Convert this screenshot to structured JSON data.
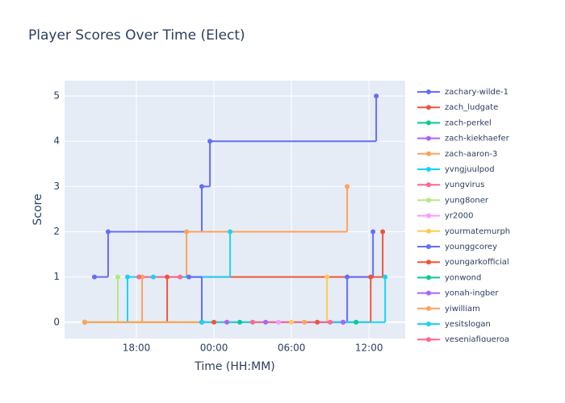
{
  "chart_data": {
    "type": "line",
    "line_shape": "hv",
    "title": "Player Scores Over Time (Elect)",
    "x_label": "Time (HH:MM)",
    "y_label": "Score",
    "xlim": [
      12.44,
      38.8
    ],
    "ylim": [
      -0.36,
      5.34
    ],
    "xticks": [
      {
        "value": 18,
        "label": "18:00"
      },
      {
        "value": 24,
        "label": "00:00"
      },
      {
        "value": 30,
        "label": "06:00"
      },
      {
        "value": 36,
        "label": "12:00"
      }
    ],
    "yticks": [
      0,
      1,
      2,
      3,
      4,
      5
    ],
    "grid": true,
    "series": [
      {
        "name": "zachary-wilde-1",
        "color": "#636efa",
        "x": [
          14.75,
          15.81,
          23.06,
          23.69,
          36.56
        ],
        "values": [
          1,
          2,
          3,
          4,
          5
        ]
      },
      {
        "name": "zach_ludgate",
        "color": "#EF553B",
        "x": [
          14.0,
          20.38,
          36.13,
          37.06
        ],
        "values": [
          0,
          1,
          1,
          2
        ]
      },
      {
        "name": "zach-perkel",
        "color": "#00cc96",
        "x": [
          14.0,
          23.06
        ],
        "values": [
          0,
          0
        ]
      },
      {
        "name": "zach-kiekhaefer",
        "color": "#ab63fa",
        "x": [
          25.0,
          34.0
        ],
        "values": [
          0,
          0
        ]
      },
      {
        "name": "zach-aaron-3",
        "color": "#FFA15A",
        "x": [
          14.0,
          18.44,
          21.88,
          34.31
        ],
        "values": [
          0,
          1,
          2,
          3
        ]
      },
      {
        "name": "yvngjuulpod",
        "color": "#19d3f3",
        "x": [
          14.0,
          17.31,
          19.31,
          25.25
        ],
        "values": [
          0,
          1,
          1,
          2
        ]
      },
      {
        "name": "yungvirus",
        "color": "#FF6692",
        "x": [
          18.19,
          21.38
        ],
        "values": [
          1,
          1
        ]
      },
      {
        "name": "yung8oner",
        "color": "#B6E880",
        "x": [
          14.0,
          16.56
        ],
        "values": [
          0,
          1
        ]
      },
      {
        "name": "yr2000",
        "color": "#FF97FF",
        "x": [
          27.0,
          29.0
        ],
        "values": [
          0,
          0
        ]
      },
      {
        "name": "yourmatemurph",
        "color": "#FECB52",
        "x": [
          14.0,
          30.0,
          32.75
        ],
        "values": [
          0,
          0,
          1
        ]
      },
      {
        "name": "younggcorey",
        "color": "#636efa",
        "x": [
          22.06,
          23.06,
          34.31,
          36.31
        ],
        "values": [
          1,
          0,
          1,
          2
        ]
      },
      {
        "name": "youngarkofficial",
        "color": "#EF553B",
        "x": [
          24.0,
          32.0,
          36.13
        ],
        "values": [
          0,
          0,
          1
        ]
      },
      {
        "name": "yonwond",
        "color": "#00cc96",
        "x": [
          26.0,
          35.0
        ],
        "values": [
          0,
          0
        ]
      },
      {
        "name": "yonah-ingber",
        "color": "#ab63fa",
        "x": [
          28.0,
          34.0
        ],
        "values": [
          0,
          0
        ]
      },
      {
        "name": "yiwilliam",
        "color": "#FFA15A",
        "x": [
          14.0,
          31.0
        ],
        "values": [
          0,
          0
        ]
      },
      {
        "name": "yesitslogan",
        "color": "#19d3f3",
        "x": [
          23.06,
          37.25
        ],
        "values": [
          0,
          1
        ]
      },
      {
        "name": "yeseniafigueroa",
        "color": "#FF6692",
        "x": [
          27.0,
          33.0
        ],
        "values": [
          0,
          0
        ]
      }
    ]
  }
}
